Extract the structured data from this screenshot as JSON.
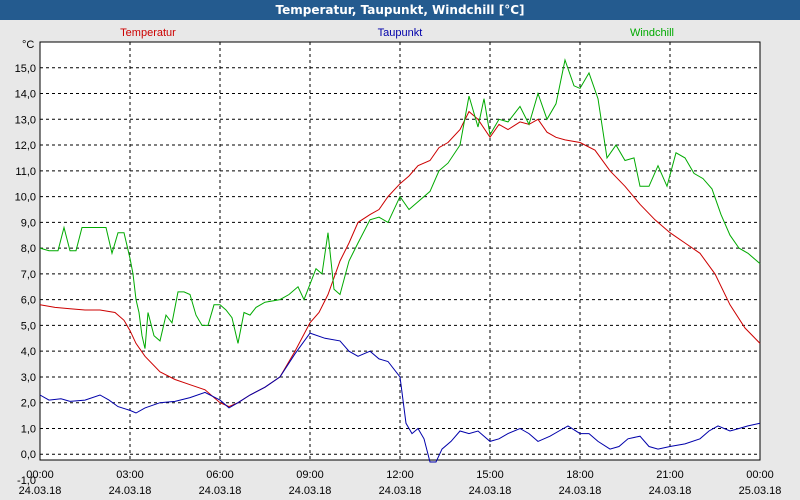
{
  "window": {
    "title": "Temperatur, Taupunkt, Windchill [°C]"
  },
  "chart_data": {
    "type": "line",
    "title": "Temperatur, Taupunkt, Windchill [°C]",
    "ylabel": "°C",
    "xlim_hours": [
      0,
      24
    ],
    "ylim": [
      -1,
      16
    ],
    "grid": true,
    "legend_placement": "top",
    "x_ticks": [
      {
        "h": 0,
        "time": "00:00",
        "date": "24.03.18"
      },
      {
        "h": 3,
        "time": "03:00",
        "date": "24.03.18"
      },
      {
        "h": 6,
        "time": "06:00",
        "date": "24.03.18"
      },
      {
        "h": 9,
        "time": "09:00",
        "date": "24.03.18"
      },
      {
        "h": 12,
        "time": "12:00",
        "date": "24.03.18"
      },
      {
        "h": 15,
        "time": "15:00",
        "date": "24.03.18"
      },
      {
        "h": 18,
        "time": "18:00",
        "date": "24.03.18"
      },
      {
        "h": 21,
        "time": "21:00",
        "date": "24.03.18"
      },
      {
        "h": 24,
        "time": "00:00",
        "date": "25.03.18"
      }
    ],
    "y_ticks": [
      "-1,0",
      "0,0",
      "1,0",
      "2,0",
      "3,0",
      "4,0",
      "5,0",
      "6,0",
      "7,0",
      "8,0",
      "9,0",
      "10,0",
      "11,0",
      "12,0",
      "13,0",
      "14,0",
      "15,0"
    ],
    "series": [
      {
        "name": "Temperatur",
        "color": "#cc0000",
        "points": [
          [
            0,
            5.8
          ],
          [
            0.5,
            5.7
          ],
          [
            1,
            5.65
          ],
          [
            1.5,
            5.6
          ],
          [
            2,
            5.6
          ],
          [
            2.5,
            5.5
          ],
          [
            2.8,
            5.2
          ],
          [
            3,
            4.8
          ],
          [
            3.2,
            4.3
          ],
          [
            3.5,
            3.8
          ],
          [
            4,
            3.2
          ],
          [
            4.5,
            2.9
          ],
          [
            5,
            2.7
          ],
          [
            5.5,
            2.5
          ],
          [
            6,
            2.0
          ],
          [
            6.3,
            1.85
          ],
          [
            6.6,
            2.0
          ],
          [
            7,
            2.3
          ],
          [
            7.5,
            2.6
          ],
          [
            8,
            3.0
          ],
          [
            8.5,
            4.0
          ],
          [
            9,
            5.1
          ],
          [
            9.3,
            5.5
          ],
          [
            9.6,
            6.2
          ],
          [
            10,
            7.5
          ],
          [
            10.3,
            8.2
          ],
          [
            10.6,
            9.0
          ],
          [
            11,
            9.3
          ],
          [
            11.3,
            9.5
          ],
          [
            11.6,
            10.0
          ],
          [
            12,
            10.5
          ],
          [
            12.3,
            10.8
          ],
          [
            12.6,
            11.2
          ],
          [
            13,
            11.4
          ],
          [
            13.3,
            11.9
          ],
          [
            13.6,
            12.1
          ],
          [
            14,
            12.6
          ],
          [
            14.3,
            13.3
          ],
          [
            14.6,
            13.0
          ],
          [
            15,
            12.3
          ],
          [
            15.3,
            12.8
          ],
          [
            15.6,
            12.6
          ],
          [
            16,
            12.9
          ],
          [
            16.3,
            12.8
          ],
          [
            16.6,
            13.0
          ],
          [
            16.9,
            12.5
          ],
          [
            17.2,
            12.3
          ],
          [
            17.5,
            12.2
          ],
          [
            18,
            12.1
          ],
          [
            18.5,
            11.8
          ],
          [
            19,
            11.0
          ],
          [
            19.5,
            10.4
          ],
          [
            20,
            9.7
          ],
          [
            20.5,
            9.1
          ],
          [
            21,
            8.6
          ],
          [
            21.5,
            8.2
          ],
          [
            22,
            7.8
          ],
          [
            22.5,
            7.0
          ],
          [
            23,
            5.8
          ],
          [
            23.5,
            4.9
          ],
          [
            24,
            4.3
          ]
        ]
      },
      {
        "name": "Taupunkt",
        "color": "#0000aa",
        "points": [
          [
            0,
            2.3
          ],
          [
            0.3,
            2.1
          ],
          [
            0.7,
            2.15
          ],
          [
            1,
            2.05
          ],
          [
            1.5,
            2.1
          ],
          [
            2,
            2.3
          ],
          [
            2.3,
            2.1
          ],
          [
            2.6,
            1.85
          ],
          [
            3,
            1.7
          ],
          [
            3.2,
            1.6
          ],
          [
            3.5,
            1.8
          ],
          [
            4,
            2.0
          ],
          [
            4.5,
            2.05
          ],
          [
            5,
            2.2
          ],
          [
            5.5,
            2.4
          ],
          [
            6,
            2.1
          ],
          [
            6.3,
            1.8
          ],
          [
            6.6,
            2.0
          ],
          [
            7,
            2.3
          ],
          [
            7.5,
            2.6
          ],
          [
            8,
            3.0
          ],
          [
            8.5,
            3.9
          ],
          [
            9,
            4.7
          ],
          [
            9.5,
            4.5
          ],
          [
            10,
            4.4
          ],
          [
            10.3,
            4.0
          ],
          [
            10.6,
            3.8
          ],
          [
            11,
            4.0
          ],
          [
            11.3,
            3.7
          ],
          [
            11.6,
            3.6
          ],
          [
            12,
            3.0
          ],
          [
            12.2,
            1.2
          ],
          [
            12.4,
            0.8
          ],
          [
            12.6,
            1.0
          ],
          [
            12.8,
            0.6
          ],
          [
            13,
            -0.3
          ],
          [
            13.2,
            -0.3
          ],
          [
            13.4,
            0.2
          ],
          [
            13.7,
            0.5
          ],
          [
            14,
            0.9
          ],
          [
            14.3,
            0.8
          ],
          [
            14.6,
            0.9
          ],
          [
            15,
            0.5
          ],
          [
            15.3,
            0.6
          ],
          [
            15.6,
            0.8
          ],
          [
            16,
            1.0
          ],
          [
            16.3,
            0.8
          ],
          [
            16.6,
            0.5
          ],
          [
            17,
            0.7
          ],
          [
            17.3,
            0.9
          ],
          [
            17.6,
            1.1
          ],
          [
            18,
            0.8
          ],
          [
            18.3,
            0.8
          ],
          [
            18.6,
            0.5
          ],
          [
            19,
            0.2
          ],
          [
            19.3,
            0.3
          ],
          [
            19.6,
            0.6
          ],
          [
            20,
            0.7
          ],
          [
            20.3,
            0.3
          ],
          [
            20.6,
            0.2
          ],
          [
            21,
            0.3
          ],
          [
            21.5,
            0.4
          ],
          [
            22,
            0.6
          ],
          [
            22.3,
            0.9
          ],
          [
            22.6,
            1.1
          ],
          [
            23,
            0.9
          ],
          [
            23.3,
            1.0
          ],
          [
            23.6,
            1.1
          ],
          [
            24,
            1.2
          ]
        ]
      },
      {
        "name": "Windchill",
        "color": "#00aa00",
        "points": [
          [
            0,
            8.0
          ],
          [
            0.3,
            7.9
          ],
          [
            0.6,
            7.9
          ],
          [
            0.8,
            8.8
          ],
          [
            1,
            7.9
          ],
          [
            1.2,
            7.9
          ],
          [
            1.4,
            8.8
          ],
          [
            2,
            8.8
          ],
          [
            2.2,
            8.8
          ],
          [
            2.4,
            7.8
          ],
          [
            2.6,
            8.6
          ],
          [
            2.8,
            8.6
          ],
          [
            3,
            7.6
          ],
          [
            3.1,
            7.0
          ],
          [
            3.2,
            6.0
          ],
          [
            3.3,
            5.5
          ],
          [
            3.4,
            4.6
          ],
          [
            3.5,
            4.1
          ],
          [
            3.6,
            5.5
          ],
          [
            3.8,
            4.6
          ],
          [
            4,
            4.4
          ],
          [
            4.2,
            5.4
          ],
          [
            4.4,
            5.1
          ],
          [
            4.6,
            6.3
          ],
          [
            4.8,
            6.3
          ],
          [
            5,
            6.2
          ],
          [
            5.2,
            5.4
          ],
          [
            5.4,
            5.0
          ],
          [
            5.6,
            5.0
          ],
          [
            5.8,
            5.8
          ],
          [
            6,
            5.8
          ],
          [
            6.2,
            5.6
          ],
          [
            6.4,
            5.3
          ],
          [
            6.6,
            4.3
          ],
          [
            6.8,
            5.5
          ],
          [
            7,
            5.4
          ],
          [
            7.2,
            5.7
          ],
          [
            7.5,
            5.9
          ],
          [
            8,
            6.0
          ],
          [
            8.3,
            6.2
          ],
          [
            8.6,
            6.5
          ],
          [
            8.8,
            6.0
          ],
          [
            9,
            6.6
          ],
          [
            9.2,
            7.2
          ],
          [
            9.4,
            7.0
          ],
          [
            9.6,
            8.6
          ],
          [
            9.8,
            6.4
          ],
          [
            10,
            6.2
          ],
          [
            10.3,
            7.5
          ],
          [
            10.6,
            8.2
          ],
          [
            11,
            9.1
          ],
          [
            11.3,
            9.2
          ],
          [
            11.6,
            9.0
          ],
          [
            12,
            10.0
          ],
          [
            12.3,
            9.5
          ],
          [
            12.6,
            9.8
          ],
          [
            13,
            10.2
          ],
          [
            13.3,
            11.0
          ],
          [
            13.6,
            11.3
          ],
          [
            14,
            12.0
          ],
          [
            14.3,
            13.9
          ],
          [
            14.6,
            12.7
          ],
          [
            14.8,
            13.8
          ],
          [
            15,
            12.4
          ],
          [
            15.3,
            13.0
          ],
          [
            15.6,
            12.9
          ],
          [
            16,
            13.5
          ],
          [
            16.3,
            12.8
          ],
          [
            16.6,
            14.0
          ],
          [
            16.9,
            13.0
          ],
          [
            17.2,
            13.6
          ],
          [
            17.5,
            15.3
          ],
          [
            17.8,
            14.3
          ],
          [
            18,
            14.2
          ],
          [
            18.3,
            14.8
          ],
          [
            18.6,
            13.8
          ],
          [
            18.9,
            11.5
          ],
          [
            19.2,
            12.0
          ],
          [
            19.5,
            11.4
          ],
          [
            19.8,
            11.5
          ],
          [
            20,
            10.4
          ],
          [
            20.3,
            10.4
          ],
          [
            20.6,
            11.2
          ],
          [
            20.9,
            10.4
          ],
          [
            21.2,
            11.7
          ],
          [
            21.5,
            11.5
          ],
          [
            21.8,
            10.9
          ],
          [
            22.1,
            10.7
          ],
          [
            22.4,
            10.3
          ],
          [
            22.7,
            9.3
          ],
          [
            23,
            8.5
          ],
          [
            23.3,
            8.0
          ],
          [
            23.6,
            7.8
          ],
          [
            24,
            7.4
          ]
        ]
      }
    ]
  }
}
